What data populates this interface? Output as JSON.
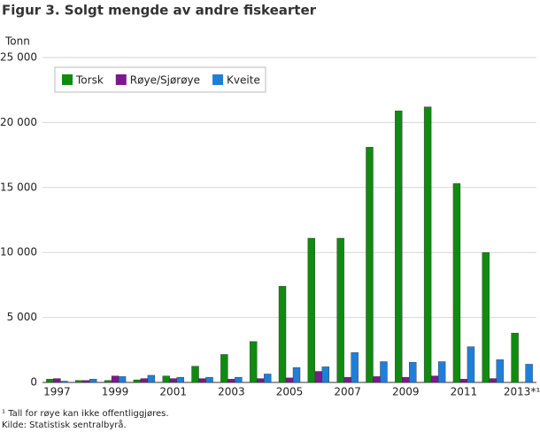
{
  "chart_data": {
    "type": "bar",
    "title": "Figur 3. Solgt mengde av andre fiskearter",
    "y_label": "Tonn",
    "categories": [
      "1997",
      null,
      "1999",
      null,
      "2001",
      null,
      "2003",
      null,
      "2005",
      null,
      "2007",
      null,
      "2009",
      null,
      "2011",
      null,
      "2013*¹"
    ],
    "series": [
      {
        "name": "Torsk",
        "color": "#118a11",
        "values": [
          250,
          150,
          150,
          200,
          500,
          1250,
          2150,
          3150,
          7400,
          11100,
          11100,
          18100,
          20900,
          21200,
          15300,
          10000,
          3800
        ]
      },
      {
        "name": "Røye/Sjørøye",
        "color": "#7a1a8c",
        "values": [
          300,
          150,
          500,
          300,
          300,
          300,
          250,
          300,
          350,
          850,
          400,
          450,
          400,
          500,
          250,
          300,
          null
        ]
      },
      {
        "name": "Kveite",
        "color": "#1f7fd8",
        "values": [
          100,
          250,
          450,
          550,
          400,
          400,
          400,
          650,
          1150,
          1200,
          2300,
          1600,
          1550,
          1600,
          2750,
          1750,
          1400
        ]
      }
    ],
    "ylim": [
      0,
      25000
    ],
    "yticks": [
      0,
      {
        "value": 5000,
        "label": "5 000"
      },
      {
        "value": 10000,
        "label": "10 000"
      },
      {
        "value": 15000,
        "label": "15 000"
      },
      {
        "value": 20000,
        "label": "20 000"
      },
      {
        "value": 25000,
        "label": "25 000"
      }
    ],
    "grid": true,
    "legend": "top-left",
    "footnotes": [
      "¹ Tall for røye kan ikke offentliggjøres.",
      "Kilde: Statistisk sentralbyrå."
    ]
  }
}
